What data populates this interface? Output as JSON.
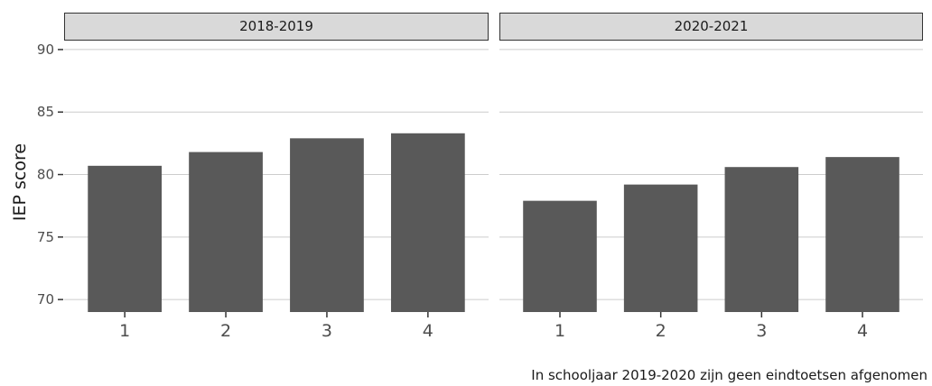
{
  "chart_data": {
    "type": "bar",
    "ylabel": "IEP score",
    "ylim": [
      69,
      90.5
    ],
    "yticks": [
      70,
      75,
      80,
      85,
      90
    ],
    "grid": true,
    "bar_color": "#595959",
    "caption": "In schooljaar 2019-2020 zijn geen eindtoetsen afgenomen",
    "panels": [
      {
        "strip": "2018-2019",
        "categories": [
          "1",
          "2",
          "3",
          "4"
        ],
        "values": [
          80.7,
          81.8,
          82.9,
          83.3
        ]
      },
      {
        "strip": "2020-2021",
        "categories": [
          "1",
          "2",
          "3",
          "4"
        ],
        "values": [
          77.9,
          79.2,
          80.6,
          81.4
        ]
      }
    ]
  }
}
